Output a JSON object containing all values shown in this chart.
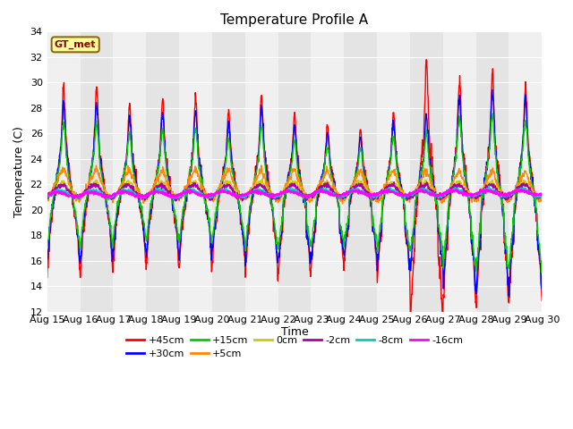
{
  "title": "Temperature Profile A",
  "xlabel": "Time",
  "ylabel": "Temperature (C)",
  "ylim": [
    12,
    34
  ],
  "yticks": [
    12,
    14,
    16,
    18,
    20,
    22,
    24,
    26,
    28,
    30,
    32,
    34
  ],
  "figsize": [
    6.4,
    4.8
  ],
  "dpi": 100,
  "xtick_labels": [
    "Aug 15",
    "Aug 16",
    "Aug 17",
    "Aug 18",
    "Aug 19",
    "Aug 20",
    "Aug 21",
    "Aug 22",
    "Aug 23",
    "Aug 24",
    "Aug 25",
    "Aug 26",
    "Aug 27",
    "Aug 28",
    "Aug 29",
    "Aug 30"
  ],
  "band_colors": [
    "#f0f0f0",
    "#e4e4e4"
  ],
  "grid_color": "#ffffff",
  "fig_bg": "#ffffff",
  "colors": {
    "p45": "#ff0000",
    "p30": "#0000ff",
    "p15": "#00cc00",
    "p5": "#ff8800",
    "p0": "#cccc00",
    "pm2": "#aa00aa",
    "pm8": "#00cccc",
    "pm16": "#ff00ff"
  },
  "gt_box": {
    "facecolor": "#ffff99",
    "edgecolor": "#8b6914",
    "textcolor": "#8b0000"
  }
}
